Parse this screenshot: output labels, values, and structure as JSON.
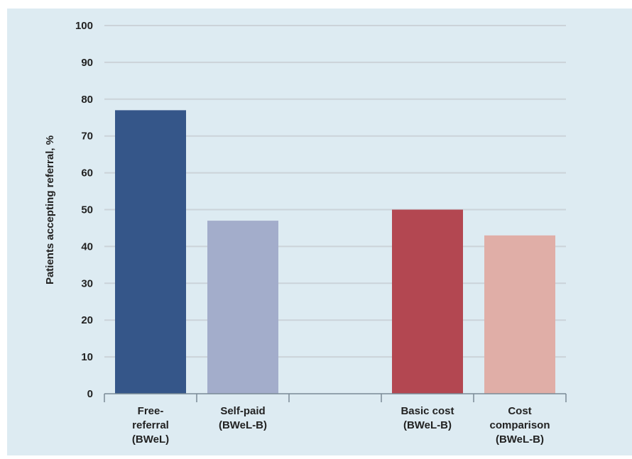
{
  "chart_data": {
    "type": "bar",
    "ylabel": "Patients accepting referral, %",
    "xlabel": "",
    "ylim": [
      0,
      100
    ],
    "yticks": [
      0,
      10,
      20,
      30,
      40,
      50,
      60,
      70,
      80,
      90,
      100
    ],
    "grid": true,
    "categories": [
      {
        "lines": [
          "Free-",
          "referral",
          "(BWeL)"
        ],
        "value": 77,
        "color": "#355689"
      },
      {
        "lines": [
          "Self-paid",
          "(BWeL-B)"
        ],
        "value": 47,
        "color": "#a3adcb"
      },
      {
        "lines": [],
        "value": null,
        "color": null
      },
      {
        "lines": [
          "Basic cost",
          "(BWeL-B)"
        ],
        "value": 50,
        "color": "#b34751"
      },
      {
        "lines": [
          "Cost",
          "comparison",
          "(BWeL-B)"
        ],
        "value": 43,
        "color": "#e0aea7"
      }
    ]
  },
  "colors": {
    "background": "#ddebf2",
    "gridline": "#cbd3d9",
    "axis": "#7a8a96",
    "text": "#222222"
  }
}
